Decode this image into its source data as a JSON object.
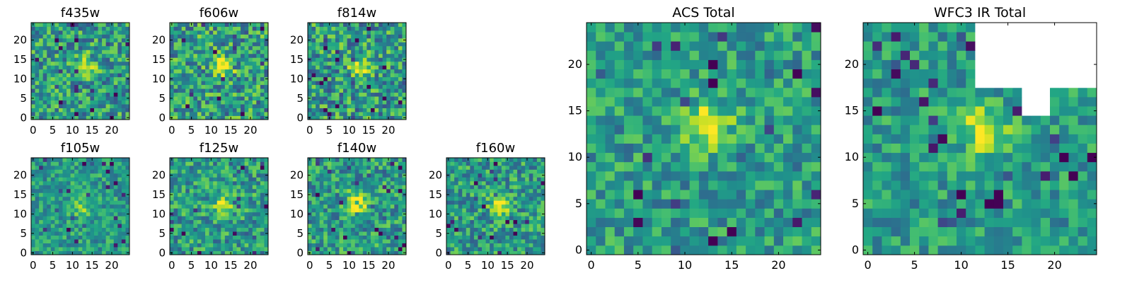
{
  "figure": {
    "colormap": "viridis",
    "mask_color": "#ffffff",
    "axis_color": "#000000"
  },
  "chart_data": [
    {
      "type": "heatmap",
      "title": "f435w",
      "grid_size": [
        25,
        25
      ],
      "xticks": [
        0,
        5,
        10,
        15,
        20
      ],
      "yticks": [
        0,
        5,
        10,
        15,
        20
      ],
      "xlim": [
        -0.5,
        24.5
      ],
      "ylim": [
        -0.5,
        24.5
      ],
      "noise_level": 0.28,
      "source_peak": 0.32,
      "source_center": [
        13.5,
        13.5
      ],
      "masked_region": null,
      "grid": false
    },
    {
      "type": "heatmap",
      "title": "f606w",
      "grid_size": [
        25,
        25
      ],
      "xticks": [
        0,
        5,
        10,
        15,
        20
      ],
      "yticks": [
        0,
        5,
        10,
        15,
        20
      ],
      "xlim": [
        -0.5,
        24.5
      ],
      "ylim": [
        -0.5,
        24.5
      ],
      "noise_level": 0.3,
      "source_peak": 0.55,
      "source_center": [
        13,
        13
      ],
      "masked_region": null,
      "grid": false
    },
    {
      "type": "heatmap",
      "title": "f814w",
      "grid_size": [
        25,
        25
      ],
      "xticks": [
        0,
        5,
        10,
        15,
        20
      ],
      "yticks": [
        0,
        5,
        10,
        15,
        20
      ],
      "xlim": [
        -0.5,
        24.5
      ],
      "ylim": [
        -0.5,
        24.5
      ],
      "noise_level": 0.3,
      "source_peak": 0.5,
      "source_center": [
        13,
        13
      ],
      "masked_region": null,
      "grid": false
    },
    {
      "type": "heatmap",
      "title": "f105w",
      "grid_size": [
        25,
        25
      ],
      "xticks": [
        0,
        5,
        10,
        15,
        20
      ],
      "yticks": [
        0,
        5,
        10,
        15,
        20
      ],
      "xlim": [
        -0.5,
        24.5
      ],
      "ylim": [
        -0.5,
        24.5
      ],
      "noise_level": 0.2,
      "source_peak": 0.25,
      "source_center": [
        12,
        12
      ],
      "masked_region": null,
      "grid": false
    },
    {
      "type": "heatmap",
      "title": "f125w",
      "grid_size": [
        25,
        25
      ],
      "xticks": [
        0,
        5,
        10,
        15,
        20
      ],
      "yticks": [
        0,
        5,
        10,
        15,
        20
      ],
      "xlim": [
        -0.5,
        24.5
      ],
      "ylim": [
        -0.5,
        24.5
      ],
      "noise_level": 0.25,
      "source_peak": 0.35,
      "source_center": [
        13,
        12
      ],
      "masked_region": null,
      "grid": false
    },
    {
      "type": "heatmap",
      "title": "f140w",
      "grid_size": [
        25,
        25
      ],
      "xticks": [
        0,
        5,
        10,
        15,
        20
      ],
      "yticks": [
        0,
        5,
        10,
        15,
        20
      ],
      "xlim": [
        -0.5,
        24.5
      ],
      "ylim": [
        -0.5,
        24.5
      ],
      "noise_level": 0.25,
      "source_peak": 0.5,
      "source_center": [
        12,
        13
      ],
      "masked_region": null,
      "grid": false
    },
    {
      "type": "heatmap",
      "title": "f160w",
      "grid_size": [
        25,
        25
      ],
      "xticks": [
        0,
        5,
        10,
        15,
        20
      ],
      "yticks": [
        0,
        5,
        10,
        15,
        20
      ],
      "xlim": [
        -0.5,
        24.5
      ],
      "ylim": [
        -0.5,
        24.5
      ],
      "noise_level": 0.25,
      "source_peak": 0.45,
      "source_center": [
        13,
        12
      ],
      "masked_region": null,
      "grid": false
    },
    {
      "type": "heatmap",
      "title": "ACS Total",
      "grid_size": [
        25,
        25
      ],
      "xticks": [
        0,
        5,
        10,
        15,
        20
      ],
      "yticks": [
        0,
        5,
        10,
        15,
        20
      ],
      "xlim": [
        -0.5,
        24.5
      ],
      "ylim": [
        -0.5,
        24.5
      ],
      "noise_level": 0.22,
      "source_peak": 0.45,
      "source_center": [
        12.5,
        13.5
      ],
      "masked_region": null,
      "grid": false
    },
    {
      "type": "heatmap",
      "title": "WFC3 IR Total",
      "grid_size": [
        25,
        25
      ],
      "xticks": [
        0,
        5,
        10,
        15,
        20
      ],
      "yticks": [
        0,
        5,
        10,
        15,
        20
      ],
      "xlim": [
        -0.5,
        24.5
      ],
      "ylim": [
        -0.5,
        24.5
      ],
      "noise_level": 0.2,
      "source_peak": 0.45,
      "source_center": [
        12.5,
        13
      ],
      "masked_region": {
        "x_range": [
          12,
          24
        ],
        "y_range": [
          18,
          24
        ],
        "notch_x_range": [
          17,
          19
        ],
        "notch_y_low": 15
      },
      "grid": false
    }
  ]
}
